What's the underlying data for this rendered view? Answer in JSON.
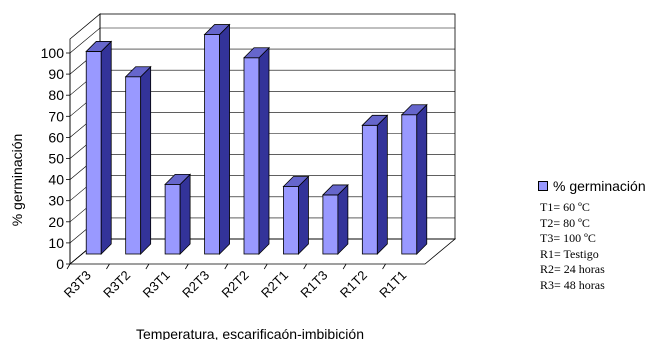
{
  "chart_data": {
    "type": "bar",
    "categories": [
      "R3T3",
      "R3T2",
      "R3T1",
      "R2T3",
      "R2T2",
      "R2T1",
      "R1T3",
      "R1T2",
      "R1T1"
    ],
    "series": [
      {
        "name": "% germinación",
        "values": [
          96,
          84,
          33,
          104,
          93,
          32,
          28,
          61,
          66
        ]
      }
    ],
    "ylabel": "% germinación",
    "xlabel": "Temperatura, escarificaón-imbibición",
    "ylim": [
      0,
      100
    ],
    "yticks": [
      "0",
      "10",
      "20",
      "30",
      "40",
      "50",
      "60",
      "70",
      "80",
      "90",
      "100"
    ],
    "grid": true,
    "legend_position": "right",
    "bar_color": "#9999ff"
  },
  "legend": {
    "series_label": "% germinación",
    "notes": [
      "T1= 60 ºC",
      "T2= 80 ºC",
      "T3= 100 ºC",
      "R1= Testigo",
      "R2= 24 horas",
      "R3= 48 horas"
    ]
  }
}
